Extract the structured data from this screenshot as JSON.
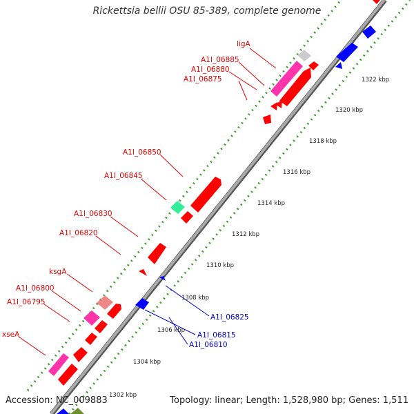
{
  "title": "Rickettsia bellii OSU 85-389, complete genome",
  "accession": "Accession: NC_009883",
  "summary": "Topology: linear; Length: 1,528,980 bp; Genes: 1,511",
  "scale_labels": [
    "1302 kbp",
    "1304 kbp",
    "1306 kbp",
    "1308 kbp",
    "1310 kbp",
    "1312 kbp",
    "1314 kbp",
    "1316 kbp",
    "1318 kbp",
    "1320 kbp",
    "1322 kbp"
  ],
  "forward_gene_labels": [
    "ligA",
    "A1I_06885",
    "A1I_06880",
    "A1I_06875",
    "A1I_06850",
    "A1I_06845",
    "A1I_06830",
    "A1I_06820",
    "ksgA",
    "A1I_06800",
    "A1I_06795",
    "xseA"
  ],
  "reverse_gene_labels": [
    "A1I_06825",
    "A1I_06815",
    "A1I_06810"
  ],
  "colors": {
    "forward_gene": "#ff0000",
    "reverse_gene": "#0000ff",
    "rrna_pink": "#ff33aa",
    "misc_light_red": "#ee8888",
    "green_feature": "#33ee99",
    "grey_feature": "#cccccc",
    "axis": "#8c8c8c",
    "tick_marks": "#3a9a2a",
    "forward_label": "#e00000",
    "reverse_label": "#0000cc"
  }
}
